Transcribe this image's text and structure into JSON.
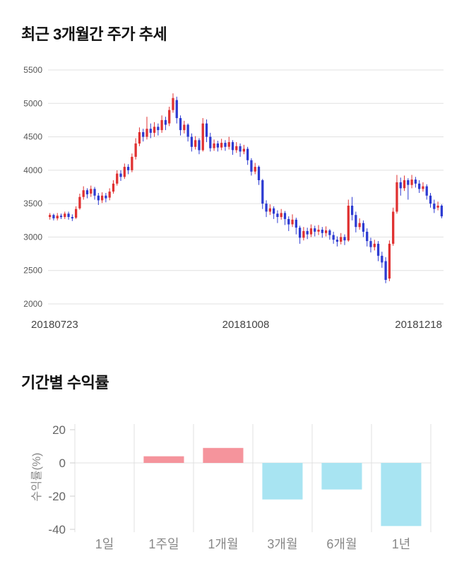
{
  "page_title_area": {
    "price_section_title": "최근 3개월간 주가 추세",
    "returns_section_title": "기간별 수익률"
  },
  "chart_data": [
    {
      "type": "candlestick",
      "title": "최근 3개월간 주가 추세",
      "x_labels": [
        "20180723",
        "20181008",
        "20181218"
      ],
      "ylim": [
        2000,
        5500
      ],
      "yticks": [
        5500,
        5000,
        4500,
        4000,
        3500,
        3000,
        2500,
        2000
      ],
      "colors": {
        "up": "#e03131",
        "down": "#2d3bd2",
        "grid": "#e0e0e0",
        "tick_text": "#555555",
        "date_text": "#444444"
      },
      "candles": [
        [
          3300,
          3330,
          3260,
          3360
        ],
        [
          3330,
          3280,
          3250,
          3350
        ],
        [
          3280,
          3320,
          3250,
          3360
        ],
        [
          3320,
          3300,
          3270,
          3350
        ],
        [
          3300,
          3350,
          3270,
          3380
        ],
        [
          3350,
          3300,
          3260,
          3380
        ],
        [
          3300,
          3280,
          3240,
          3340
        ],
        [
          3290,
          3420,
          3270,
          3460
        ],
        [
          3430,
          3600,
          3410,
          3650
        ],
        [
          3600,
          3700,
          3560,
          3760
        ],
        [
          3700,
          3640,
          3580,
          3730
        ],
        [
          3650,
          3720,
          3600,
          3770
        ],
        [
          3720,
          3620,
          3560,
          3750
        ],
        [
          3620,
          3550,
          3480,
          3660
        ],
        [
          3550,
          3620,
          3510,
          3670
        ],
        [
          3620,
          3580,
          3520,
          3660
        ],
        [
          3590,
          3680,
          3550,
          3730
        ],
        [
          3680,
          3800,
          3650,
          3850
        ],
        [
          3800,
          3950,
          3770,
          4000
        ],
        [
          3950,
          3900,
          3840,
          4000
        ],
        [
          3900,
          4050,
          3870,
          4100
        ],
        [
          4050,
          4000,
          3940,
          4090
        ],
        [
          4000,
          4200,
          3970,
          4250
        ],
        [
          4200,
          4400,
          4160,
          4480
        ],
        [
          4400,
          4570,
          4360,
          4640
        ],
        [
          4570,
          4500,
          4430,
          4620
        ],
        [
          4500,
          4620,
          4460,
          4800
        ],
        [
          4620,
          4560,
          4480,
          4700
        ],
        [
          4560,
          4650,
          4500,
          4720
        ],
        [
          4650,
          4600,
          4520,
          4700
        ],
        [
          4600,
          4750,
          4560,
          4820
        ],
        [
          4750,
          4680,
          4600,
          4800
        ],
        [
          4700,
          4900,
          4660,
          4950
        ],
        [
          4900,
          5080,
          4860,
          5150
        ],
        [
          5050,
          4780,
          4700,
          5100
        ],
        [
          4780,
          4600,
          4520,
          4820
        ],
        [
          4600,
          4680,
          4550,
          4740
        ],
        [
          4680,
          4500,
          4430,
          4700
        ],
        [
          4500,
          4350,
          4280,
          4550
        ],
        [
          4350,
          4450,
          4310,
          4510
        ],
        [
          4450,
          4300,
          4240,
          4480
        ],
        [
          4300,
          4700,
          4280,
          4780
        ],
        [
          4700,
          4500,
          4420,
          4760
        ],
        [
          4500,
          4330,
          4280,
          4560
        ],
        [
          4330,
          4400,
          4290,
          4460
        ],
        [
          4400,
          4340,
          4280,
          4440
        ],
        [
          4340,
          4410,
          4300,
          4470
        ],
        [
          4410,
          4350,
          4290,
          4450
        ],
        [
          4350,
          4420,
          4310,
          4500
        ],
        [
          4420,
          4300,
          4230,
          4450
        ],
        [
          4300,
          4360,
          4260,
          4420
        ],
        [
          4360,
          4280,
          4200,
          4400
        ],
        [
          4280,
          4320,
          4240,
          4380
        ],
        [
          4320,
          4150,
          4080,
          4350
        ],
        [
          4150,
          3980,
          3920,
          4180
        ],
        [
          3980,
          4050,
          3940,
          4110
        ],
        [
          4050,
          3850,
          3780,
          4070
        ],
        [
          3850,
          3500,
          3420,
          3870
        ],
        [
          3500,
          3380,
          3300,
          3550
        ],
        [
          3380,
          3430,
          3330,
          3490
        ],
        [
          3430,
          3350,
          3270,
          3460
        ],
        [
          3350,
          3300,
          3210,
          3400
        ],
        [
          3300,
          3360,
          3260,
          3420
        ],
        [
          3360,
          3270,
          3180,
          3390
        ],
        [
          3270,
          3190,
          3090,
          3310
        ],
        [
          3190,
          3260,
          3150,
          3340
        ],
        [
          3260,
          3140,
          3040,
          3290
        ],
        [
          3140,
          2990,
          2900,
          3170
        ],
        [
          2990,
          3090,
          2950,
          3150
        ],
        [
          3090,
          3040,
          2970,
          3140
        ],
        [
          3040,
          3130,
          3000,
          3190
        ],
        [
          3130,
          3080,
          3010,
          3170
        ],
        [
          3080,
          3110,
          3030,
          3180
        ],
        [
          3110,
          3060,
          2990,
          3150
        ],
        [
          3060,
          3100,
          3010,
          3160
        ],
        [
          3100,
          3030,
          2960,
          3120
        ],
        [
          3030,
          2960,
          2900,
          3080
        ],
        [
          2960,
          2930,
          2860,
          3010
        ],
        [
          2930,
          3000,
          2890,
          3060
        ],
        [
          3000,
          2950,
          2880,
          3040
        ],
        [
          2950,
          3470,
          2930,
          3560
        ],
        [
          3470,
          3330,
          3250,
          3600
        ],
        [
          3330,
          3150,
          3070,
          3380
        ],
        [
          3150,
          3210,
          3110,
          3280
        ],
        [
          3210,
          3080,
          3000,
          3250
        ],
        [
          3080,
          2940,
          2860,
          3130
        ],
        [
          2940,
          2850,
          2770,
          2990
        ],
        [
          2850,
          2900,
          2800,
          2960
        ],
        [
          2900,
          2720,
          2640,
          2940
        ],
        [
          2720,
          2620,
          2540,
          2780
        ],
        [
          2640,
          2360,
          2310,
          2700
        ],
        [
          2380,
          2900,
          2340,
          2950
        ],
        [
          2900,
          3380,
          2870,
          3440
        ],
        [
          3380,
          3820,
          3350,
          3930
        ],
        [
          3820,
          3730,
          3620,
          3890
        ],
        [
          3730,
          3850,
          3690,
          3920
        ],
        [
          3850,
          3780,
          3560,
          3880
        ],
        [
          3780,
          3860,
          3730,
          3930
        ],
        [
          3860,
          3800,
          3740,
          3900
        ],
        [
          3800,
          3720,
          3660,
          3850
        ],
        [
          3720,
          3760,
          3680,
          3820
        ],
        [
          3760,
          3620,
          3560,
          3790
        ],
        [
          3620,
          3500,
          3440,
          3660
        ],
        [
          3500,
          3420,
          3360,
          3560
        ],
        [
          3440,
          3470,
          3400,
          3530
        ],
        [
          3470,
          3310,
          3280,
          3490
        ]
      ]
    },
    {
      "type": "bar",
      "title": "기간별 수익률",
      "categories": [
        "1일",
        "1주일",
        "1개월",
        "3개월",
        "6개월",
        "1년"
      ],
      "values": [
        0,
        4,
        9,
        -22,
        -16,
        -38
      ],
      "ylabel": "수익률(%)",
      "ylim": [
        -40,
        20
      ],
      "yticks": [
        20,
        0,
        -20,
        -40
      ],
      "colors": {
        "positive": "#f5949c",
        "negative": "#a8e4f2",
        "grid": "#e0e0e0",
        "tick_mark": "#cccccc",
        "tick_text": "#666666",
        "label_text": "#888888"
      }
    }
  ]
}
